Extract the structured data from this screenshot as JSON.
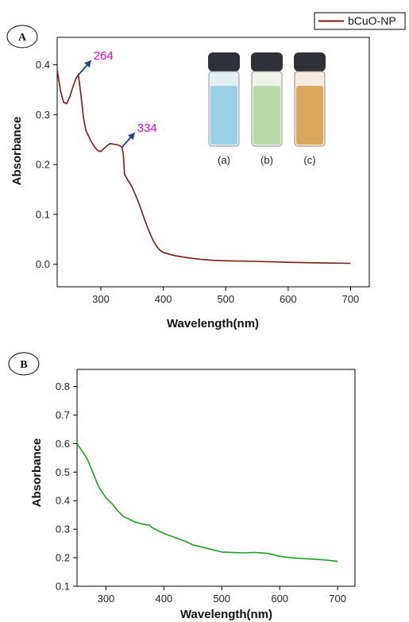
{
  "colors": {
    "series_a": "#7a1a14",
    "series_b": "#1f9e1f",
    "peak_label": "#e000d8",
    "arrow": "#1c3f8a",
    "vial_a": "#9ad0e6",
    "vial_b": "#bcd9a8",
    "vial_c": "#d9a85a",
    "cap": "#2e3238"
  },
  "chart_data": [
    {
      "type": "line",
      "panel_label": "A",
      "xlabel": "Wavelength(nm)",
      "ylabel": "Absorbance",
      "xlim": [
        230,
        730
      ],
      "ylim": [
        -0.045,
        0.455
      ],
      "xticks": [
        300,
        400,
        500,
        600,
        700
      ],
      "yticks": [
        0.0,
        0.1,
        0.2,
        0.3,
        0.4
      ],
      "ytick_labels": [
        "0.0",
        "0.1",
        "0.2",
        "0.3",
        "0.4"
      ],
      "legend": {
        "position": "top-right",
        "entries": [
          "bCuO-NP"
        ]
      },
      "series": [
        {
          "name": "bCuO-NP",
          "x": [
            230,
            235,
            240,
            245,
            250,
            255,
            260,
            264,
            268,
            272,
            276,
            280,
            285,
            290,
            295,
            300,
            305,
            310,
            315,
            320,
            325,
            330,
            334,
            336,
            338,
            345,
            350,
            355,
            360,
            365,
            370,
            375,
            380,
            385,
            390,
            395,
            400,
            410,
            420,
            440,
            460,
            480,
            500,
            550,
            600,
            650,
            700
          ],
          "y": [
            0.39,
            0.35,
            0.325,
            0.322,
            0.335,
            0.355,
            0.372,
            0.38,
            0.34,
            0.295,
            0.268,
            0.258,
            0.245,
            0.235,
            0.228,
            0.226,
            0.232,
            0.238,
            0.242,
            0.241,
            0.24,
            0.238,
            0.235,
            0.22,
            0.18,
            0.165,
            0.155,
            0.14,
            0.125,
            0.108,
            0.09,
            0.073,
            0.058,
            0.045,
            0.035,
            0.028,
            0.024,
            0.02,
            0.017,
            0.013,
            0.01,
            0.008,
            0.007,
            0.006,
            0.004,
            0.003,
            0.002
          ]
        }
      ],
      "annotations": [
        {
          "text": "264",
          "x": 264,
          "y": 0.38
        },
        {
          "text": "334",
          "x": 334,
          "y": 0.235
        }
      ],
      "inset_labels": [
        "(a)",
        "(b)",
        "(c)"
      ]
    },
    {
      "type": "line",
      "panel_label": "B",
      "xlabel": "Wavelength(nm)",
      "ylabel": "Absorbance",
      "xlim": [
        250,
        730
      ],
      "ylim": [
        0.1,
        0.86
      ],
      "xticks": [
        300,
        400,
        500,
        600,
        700
      ],
      "yticks": [
        0.1,
        0.2,
        0.3,
        0.4,
        0.5,
        0.6,
        0.7,
        0.8
      ],
      "ytick_labels": [
        "0.1",
        "0.2",
        "0.3",
        "0.4",
        "0.5",
        "0.6",
        "0.7",
        "0.8"
      ],
      "series": [
        {
          "x": [
            250,
            255,
            260,
            265,
            270,
            275,
            280,
            285,
            290,
            295,
            300,
            310,
            320,
            330,
            340,
            350,
            360,
            370,
            375,
            380,
            390,
            400,
            420,
            440,
            450,
            460,
            480,
            500,
            520,
            540,
            550,
            560,
            580,
            600,
            620,
            640,
            660,
            680,
            700
          ],
          "y": [
            0.6,
            0.585,
            0.57,
            0.555,
            0.535,
            0.51,
            0.485,
            0.46,
            0.44,
            0.425,
            0.41,
            0.39,
            0.365,
            0.345,
            0.335,
            0.325,
            0.32,
            0.315,
            0.315,
            0.305,
            0.295,
            0.285,
            0.27,
            0.255,
            0.245,
            0.24,
            0.23,
            0.22,
            0.218,
            0.217,
            0.218,
            0.218,
            0.215,
            0.205,
            0.2,
            0.197,
            0.195,
            0.192,
            0.187
          ]
        }
      ]
    }
  ]
}
